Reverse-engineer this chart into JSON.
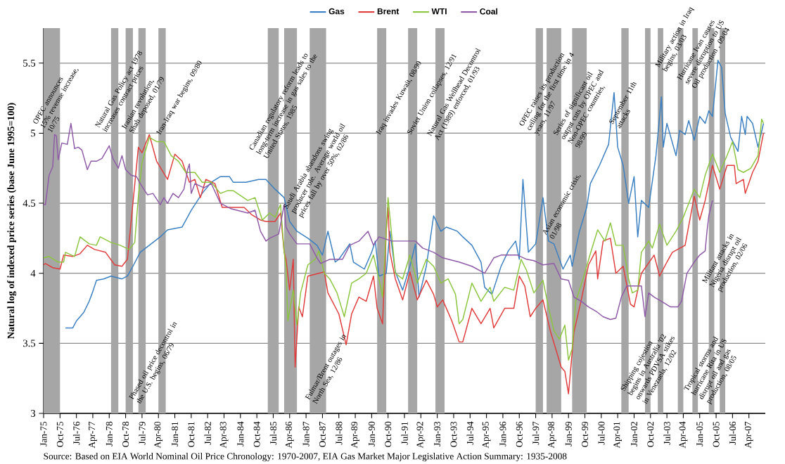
{
  "chart_data": {
    "type": "line",
    "ylabel": "Natural log of indexed price series (base June 1995=100)",
    "annotations": [
      "Source: Based on EIA World Nominal Oil Price Chronology: 1970-2007, EIA Gas Market Major Legislative Action Summary: 1935-2008"
    ],
    "xlim": [
      "1975-01",
      "2008-01"
    ],
    "ylim": [
      3,
      5.75
    ],
    "yticks": [
      3,
      3.5,
      4,
      4.5,
      5,
      5.5
    ],
    "xticks": [
      {
        "value": "1975-01",
        "label": "Jan-75"
      },
      {
        "value": "1975-10",
        "label": "Oct-75"
      },
      {
        "value": "1976-07",
        "label": "Jul-76"
      },
      {
        "value": "1977-04",
        "label": "Apr-77"
      },
      {
        "value": "1978-01",
        "label": "Jan-78"
      },
      {
        "value": "1978-10",
        "label": "Oct-78"
      },
      {
        "value": "1979-07",
        "label": "Jul-79"
      },
      {
        "value": "1980-04",
        "label": "Apr-80"
      },
      {
        "value": "1981-01",
        "label": "Jan-81"
      },
      {
        "value": "1981-10",
        "label": "Oct-81"
      },
      {
        "value": "1982-07",
        "label": "Jul-82"
      },
      {
        "value": "1983-04",
        "label": "Apr-83"
      },
      {
        "value": "1984-01",
        "label": "Jan-84"
      },
      {
        "value": "1984-10",
        "label": "Oct-84"
      },
      {
        "value": "1985-07",
        "label": "Jul-85"
      },
      {
        "value": "1986-04",
        "label": "Apr-86"
      },
      {
        "value": "1987-01",
        "label": "Jan-87"
      },
      {
        "value": "1987-10",
        "label": "Oct-87"
      },
      {
        "value": "1988-07",
        "label": "Jul-88"
      },
      {
        "value": "1989-04",
        "label": "Apr-89"
      },
      {
        "value": "1990-01",
        "label": "Jan-90"
      },
      {
        "value": "1990-10",
        "label": "Oct-90"
      },
      {
        "value": "1991-07",
        "label": "Jul-91"
      },
      {
        "value": "1992-04",
        "label": "Apr-92"
      },
      {
        "value": "1993-01",
        "label": "Jan-93"
      },
      {
        "value": "1993-10",
        "label": "Oct-93"
      },
      {
        "value": "1994-07",
        "label": "Jul-94"
      },
      {
        "value": "1995-04",
        "label": "Apr-95"
      },
      {
        "value": "1996-01",
        "label": "Jan-96"
      },
      {
        "value": "1996-10",
        "label": "Oct-96"
      },
      {
        "value": "1997-07",
        "label": "Jul-97"
      },
      {
        "value": "1998-04",
        "label": "Apr-98"
      },
      {
        "value": "1999-01",
        "label": "Jan-99"
      },
      {
        "value": "1999-10",
        "label": "Oct-99"
      },
      {
        "value": "2000-07",
        "label": "Jul-00"
      },
      {
        "value": "2001-04",
        "label": "Apr-01"
      },
      {
        "value": "2002-01",
        "label": "Jan-02"
      },
      {
        "value": "2002-10",
        "label": "Oct-02"
      },
      {
        "value": "2003-07",
        "label": "Jul-03"
      },
      {
        "value": "2004-04",
        "label": "Apr-04"
      },
      {
        "value": "2005-01",
        "label": "Jan-05"
      },
      {
        "value": "2005-10",
        "label": "Oct-05"
      },
      {
        "value": "2006-07",
        "label": "Jul-06"
      },
      {
        "value": "2007-04",
        "label": "Apr-07"
      }
    ],
    "grid": "y",
    "legend": "top",
    "bands": [
      {
        "axis": "x",
        "from": "1975-01",
        "to": "1975-10",
        "color": "#a6a6a6",
        "label": "OPEC announces 15% revenue increase, 10/75"
      },
      {
        "axis": "x",
        "from": "1978-02",
        "to": "1978-06",
        "color": "#a6a6a6",
        "label": "Natural Gas Policy act 1978 increases contract prices"
      },
      {
        "axis": "x",
        "from": "1978-10",
        "to": "1979-02",
        "color": "#a6a6a6",
        "label": "Iranian revolution, Shah deposed, 01/79"
      },
      {
        "axis": "x",
        "from": "1979-05",
        "to": "1979-09",
        "color": "#a6a6a6",
        "label": "Phased oil price decontrol in the U.S. begins, 06/79"
      },
      {
        "axis": "x",
        "from": "1980-04",
        "to": "1980-08",
        "color": "#a6a6a6",
        "label": "Iran-Iraq war begins, 09/80"
      },
      {
        "axis": "x",
        "from": "1985-04",
        "to": "1985-10",
        "color": "#a6a6a6",
        "label": "Canadian regulatory reform leads to long-term increase in gas sales to the United States, 1985"
      },
      {
        "axis": "x",
        "from": "1986-01",
        "to": "1986-08",
        "color": "#a6a6a6",
        "label": "Saudi Arabia abandons swing producer role. Average world oil prices fall by over 50%, 02/86"
      },
      {
        "axis": "x",
        "from": "1987-03",
        "to": "1987-12",
        "color": "#a6a6a6",
        "label": "Fulmar/Brent outages in North Sea, 12/86"
      },
      {
        "axis": "x",
        "from": "1990-04",
        "to": "1990-09",
        "color": "#a6a6a6",
        "label": "Iraq invades Kuwait, 08/90"
      },
      {
        "axis": "x",
        "from": "1991-09",
        "to": "1992-02",
        "color": "#a6a6a6",
        "label": "Soviet Union collapses, 12/91"
      },
      {
        "axis": "x",
        "from": "1992-12",
        "to": "1993-05",
        "color": "#a6a6a6",
        "label": "Natural Gas Wellhead Decontrol Act (1989) enforced, 01/93"
      },
      {
        "axis": "x",
        "from": "1997-07",
        "to": "1997-11",
        "color": "#a6a6a6",
        "label": "OPEC raises its production ceiling for the first time in 4 years, 11/97"
      },
      {
        "axis": "x",
        "from": "1998-01",
        "to": "1998-09",
        "color": "#a6a6a6",
        "label": "Asian economic crisis, 01/98"
      },
      {
        "axis": "x",
        "from": "1999-03",
        "to": "1999-11",
        "color": "#a6a6a6",
        "label": "Series of significant oil output cuts by OPEC and Non-OPEC countries, 98/99"
      },
      {
        "axis": "x",
        "from": "2001-06",
        "to": "2001-10",
        "color": "#a6a6a6",
        "label": "September 11th attacks"
      },
      {
        "axis": "x",
        "from": "2002-07",
        "to": "2002-10",
        "color": "#a6a6a6",
        "label": "Shipping cojestion begins in Australia '02 onwards PDVSA stikes in Venezuela, 12/02"
      },
      {
        "axis": "x",
        "from": "2003-02",
        "to": "2003-05",
        "color": "#a6a6a6",
        "label": "Military action in Iraq begins, 03/03"
      },
      {
        "axis": "x",
        "from": "2004-01",
        "to": "2004-04",
        "color": "#a6a6a6"
      },
      {
        "axis": "x",
        "from": "2004-09",
        "to": "2004-12",
        "color": "#a6a6a6",
        "label": "Hurricane Ivan causes severe disruption to US Oil production , 09/04"
      },
      {
        "axis": "x",
        "from": "2005-06",
        "to": "2005-09",
        "color": "#a6a6a6",
        "label": "Tropical storms and hurricane Rita in US disrupt oil and gas production, 08/05"
      },
      {
        "axis": "x",
        "from": "2005-12",
        "to": "2006-03",
        "color": "#a6a6a6",
        "label": "Militant attacks in Nigeria disrupt oil production, 02/06"
      }
    ],
    "series": [
      {
        "name": "Gas",
        "color": "#3a7fc1",
        "x": [
          "1976-01",
          "1976-05",
          "1976-07",
          "1976-11",
          "1977-02",
          "1977-04",
          "1977-06",
          "1977-10",
          "1978-02",
          "1978-05",
          "1978-08",
          "1978-11",
          "1979-02",
          "1979-06",
          "1979-11",
          "1980-05",
          "1980-09",
          "1981-05",
          "1981-10",
          "1982-04",
          "1982-09",
          "1983-02",
          "1983-07",
          "1983-09",
          "1984-04",
          "1984-11",
          "1985-03",
          "1985-08",
          "1986-01",
          "1986-04",
          "1986-08",
          "1987-02",
          "1987-07",
          "1987-10",
          "1988-01",
          "1988-05",
          "1988-07",
          "1989-01",
          "1989-03",
          "1989-09",
          "1990-01",
          "1990-03",
          "1990-05",
          "1990-09",
          "1990-11",
          "1991-02",
          "1991-06",
          "1991-10",
          "1992-01",
          "1992-03",
          "1992-07",
          "1992-11",
          "1993-03",
          "1993-06",
          "1993-12",
          "1994-03",
          "1994-08",
          "1995-01",
          "1995-03",
          "1995-07",
          "1995-12",
          "1996-04",
          "1996-08",
          "1996-10",
          "1996-12",
          "1997-03",
          "1997-07",
          "1997-11",
          "1998-02",
          "1998-05",
          "1998-10",
          "1999-02",
          "1999-03",
          "1999-07",
          "1999-11",
          "2000-01",
          "2000-06",
          "2000-11",
          "2001-02",
          "2001-04",
          "2001-07",
          "2001-10",
          "2002-01",
          "2002-03",
          "2002-05",
          "2002-09",
          "2003-01",
          "2003-04",
          "2003-05",
          "2003-07",
          "2003-12",
          "2004-02",
          "2004-05",
          "2004-07",
          "2004-10",
          "2005-01",
          "2005-04",
          "2005-06",
          "2005-08",
          "2005-11",
          "2006-01",
          "2006-03",
          "2006-06",
          "2006-10",
          "2006-12",
          "2007-02",
          "2007-03",
          "2007-06",
          "2007-09",
          "2007-12"
        ],
        "values": [
          3.61,
          3.61,
          3.66,
          3.72,
          3.8,
          3.87,
          3.95,
          3.96,
          3.98,
          3.97,
          3.96,
          3.98,
          4.05,
          4.15,
          4.2,
          4.26,
          4.31,
          4.33,
          4.45,
          4.57,
          4.65,
          4.69,
          4.69,
          4.65,
          4.65,
          4.67,
          4.67,
          4.6,
          4.54,
          4.37,
          4.3,
          4.25,
          4.2,
          4.13,
          4.3,
          4.08,
          4.1,
          4.21,
          4.08,
          4.03,
          4.15,
          4.23,
          3.98,
          4.0,
          4.3,
          4.01,
          3.88,
          4.05,
          4.21,
          3.83,
          4.05,
          4.41,
          4.3,
          4.33,
          4.3,
          4.26,
          4.2,
          4.08,
          3.9,
          3.85,
          4.05,
          4.16,
          4.23,
          4.1,
          4.67,
          4.15,
          4.21,
          4.54,
          4.23,
          4.21,
          4.03,
          4.13,
          4.05,
          4.3,
          4.47,
          4.64,
          4.77,
          4.92,
          5.29,
          4.9,
          4.77,
          4.5,
          4.69,
          4.26,
          4.52,
          4.47,
          4.84,
          5.26,
          4.9,
          5.07,
          4.84,
          5.02,
          4.99,
          5.09,
          4.95,
          5.12,
          5.07,
          5.16,
          5.12,
          5.52,
          5.47,
          5.14,
          4.97,
          4.87,
          5.12,
          4.99,
          5.12,
          5.07,
          4.9,
          5.07
        ]
      },
      {
        "name": "Brent",
        "color": "#e03c3c",
        "x": [
          "1975-01",
          "1975-02",
          "1975-06",
          "1975-10",
          "1975-12",
          "1976-05",
          "1976-09",
          "1977-01",
          "1977-05",
          "1977-11",
          "1978-04",
          "1978-08",
          "1978-11",
          "1979-02",
          "1979-05",
          "1979-07",
          "1979-11",
          "1980-03",
          "1980-09",
          "1981-01",
          "1981-05",
          "1981-09",
          "1981-12",
          "1982-03",
          "1982-06",
          "1982-11",
          "1983-03",
          "1983-08",
          "1984-03",
          "1984-07",
          "1984-12",
          "1985-03",
          "1985-08",
          "1985-11",
          "1986-01",
          "1986-02",
          "1986-04",
          "1986-06",
          "1986-07",
          "1986-09",
          "1986-11",
          "1987-02",
          "1987-08",
          "1987-11",
          "1988-01",
          "1988-03",
          "1988-07",
          "1988-11",
          "1989-02",
          "1989-06",
          "1989-10",
          "1990-02",
          "1990-04",
          "1990-07",
          "1990-09",
          "1990-10",
          "1990-11",
          "1991-02",
          "1991-06",
          "1991-10",
          "1992-02",
          "1992-07",
          "1992-11",
          "1993-01",
          "1993-04",
          "1993-09",
          "1994-01",
          "1994-03",
          "1994-08",
          "1995-01",
          "1995-06",
          "1995-08",
          "1996-02",
          "1996-07",
          "1996-10",
          "1997-01",
          "1997-04",
          "1997-07",
          "1997-11",
          "1998-03",
          "1998-06",
          "1998-09",
          "1998-11",
          "1999-01",
          "1999-04",
          "1999-08",
          "1999-12",
          "2000-04",
          "2000-05",
          "2000-08",
          "2000-12",
          "2001-03",
          "2001-07",
          "2001-11",
          "2002-01",
          "2002-05",
          "2002-12",
          "2003-03",
          "2003-07",
          "2003-10",
          "2004-05",
          "2004-10",
          "2005-01",
          "2005-04",
          "2005-08",
          "2005-12",
          "2006-04",
          "2006-08",
          "2006-09",
          "2007-01",
          "2007-02",
          "2007-06",
          "2007-09",
          "2007-12"
        ],
        "values": [
          4.06,
          4.07,
          4.04,
          4.03,
          4.13,
          4.12,
          4.14,
          4.2,
          4.17,
          4.15,
          4.06,
          4.05,
          4.1,
          4.5,
          4.9,
          4.86,
          4.99,
          4.8,
          4.67,
          4.85,
          4.8,
          4.65,
          4.67,
          4.54,
          4.67,
          4.64,
          4.47,
          4.47,
          4.47,
          4.42,
          4.38,
          4.37,
          4.37,
          4.43,
          4.15,
          4.1,
          3.88,
          4.1,
          3.33,
          3.76,
          3.69,
          3.98,
          4.0,
          4.01,
          3.86,
          3.81,
          3.71,
          3.49,
          3.71,
          3.83,
          3.8,
          3.98,
          3.75,
          3.64,
          4.3,
          4.47,
          4.15,
          3.96,
          3.81,
          4.01,
          3.81,
          3.95,
          3.85,
          3.76,
          3.81,
          3.66,
          3.51,
          3.51,
          3.75,
          3.64,
          3.75,
          3.61,
          3.75,
          3.75,
          3.98,
          3.91,
          3.69,
          3.75,
          3.81,
          3.59,
          3.46,
          3.33,
          3.3,
          3.14,
          3.58,
          3.81,
          4.06,
          4.16,
          3.96,
          4.23,
          4.25,
          4.0,
          4.05,
          3.78,
          3.76,
          4.0,
          4.13,
          3.98,
          4.08,
          4.15,
          4.2,
          4.55,
          4.38,
          4.52,
          4.77,
          4.6,
          4.77,
          4.77,
          4.64,
          4.67,
          4.57,
          4.72,
          4.8,
          5.0
        ]
      },
      {
        "name": "WTI",
        "color": "#8cc63f",
        "x": [
          "1975-01",
          "1975-04",
          "1975-09",
          "1975-12",
          "1976-01",
          "1976-06",
          "1976-09",
          "1977-02",
          "1977-06",
          "1977-08",
          "1978-02",
          "1978-07",
          "1978-12",
          "1979-03",
          "1979-05",
          "1979-07",
          "1979-11",
          "1980-03",
          "1980-07",
          "1980-11",
          "1981-03",
          "1981-07",
          "1981-12",
          "1982-04",
          "1982-09",
          "1983-02",
          "1983-06",
          "1983-09",
          "1984-05",
          "1984-09",
          "1985-01",
          "1985-05",
          "1985-08",
          "1985-11",
          "1986-01",
          "1986-02",
          "1986-03",
          "1986-06",
          "1986-08",
          "1986-10",
          "1987-02",
          "1987-06",
          "1987-08",
          "1987-11",
          "1988-02",
          "1988-06",
          "1988-10",
          "1989-02",
          "1989-06",
          "1989-10",
          "1990-02",
          "1990-05",
          "1990-07",
          "1990-09",
          "1990-10",
          "1991-02",
          "1991-06",
          "1991-10",
          "1992-02",
          "1992-07",
          "1992-11",
          "1993-03",
          "1993-07",
          "1993-11",
          "1994-01",
          "1994-03",
          "1994-08",
          "1995-01",
          "1995-06",
          "1995-08",
          "1996-02",
          "1996-07",
          "1996-11",
          "1997-02",
          "1997-06",
          "1997-11",
          "1998-02",
          "1998-05",
          "1998-08",
          "1998-11",
          "1999-01",
          "1999-03",
          "1999-05",
          "1999-09",
          "2000-01",
          "2000-05",
          "2000-09",
          "2000-12",
          "2001-03",
          "2001-07",
          "2001-10",
          "2001-12",
          "2002-03",
          "2002-05",
          "2002-09",
          "2002-11",
          "2003-03",
          "2003-07",
          "2003-12",
          "2004-04",
          "2004-10",
          "2005-01",
          "2005-04",
          "2005-08",
          "2005-12",
          "2006-04",
          "2006-07",
          "2006-10",
          "2007-01",
          "2007-05",
          "2007-09",
          "2007-11",
          "2007-12"
        ],
        "values": [
          4.11,
          4.12,
          4.08,
          4.08,
          4.15,
          4.12,
          4.26,
          4.21,
          4.2,
          4.26,
          4.22,
          4.2,
          4.17,
          4.22,
          4.55,
          4.79,
          4.97,
          4.94,
          4.94,
          4.84,
          4.8,
          4.72,
          4.72,
          4.65,
          4.65,
          4.57,
          4.59,
          4.59,
          4.52,
          4.54,
          4.38,
          4.43,
          4.4,
          4.49,
          4.15,
          4.05,
          3.66,
          3.88,
          3.63,
          3.86,
          4.06,
          4.1,
          4.16,
          4.0,
          3.96,
          3.86,
          3.69,
          3.93,
          3.96,
          4.0,
          4.13,
          3.96,
          3.83,
          4.3,
          4.54,
          4.0,
          3.96,
          4.13,
          3.93,
          4.1,
          4.05,
          3.93,
          3.96,
          3.85,
          3.64,
          3.67,
          3.93,
          3.8,
          3.9,
          3.8,
          3.9,
          3.88,
          4.1,
          4.02,
          3.86,
          3.95,
          3.76,
          3.59,
          3.53,
          3.63,
          3.38,
          3.46,
          3.8,
          3.96,
          4.14,
          4.31,
          4.23,
          4.36,
          4.2,
          4.2,
          3.96,
          3.86,
          3.88,
          4.15,
          4.23,
          4.18,
          4.35,
          4.2,
          4.3,
          4.4,
          4.6,
          4.54,
          4.7,
          4.85,
          4.72,
          4.84,
          4.94,
          4.74,
          4.72,
          4.75,
          4.84,
          5.1,
          5.07
        ]
      },
      {
        "name": "Coal",
        "color": "#8e5aa8",
        "x": [
          "1975-01",
          "1975-02",
          "1975-04",
          "1975-06",
          "1975-07",
          "1975-08",
          "1975-09",
          "1975-11",
          "1976-02",
          "1976-04",
          "1976-06",
          "1976-08",
          "1976-10",
          "1977-01",
          "1977-03",
          "1977-06",
          "1977-09",
          "1978-01",
          "1978-03",
          "1978-06",
          "1978-08",
          "1978-10",
          "1979-01",
          "1979-04",
          "1979-06",
          "1979-10",
          "1980-01",
          "1980-05",
          "1980-07",
          "1980-09",
          "1980-12",
          "1981-03",
          "1981-06",
          "1981-08",
          "1981-09",
          "1981-10",
          "1981-12",
          "1982-05",
          "1982-09",
          "1983-02",
          "1983-08",
          "1984-05",
          "1984-09",
          "1984-12",
          "1985-03",
          "1985-05",
          "1985-10",
          "1986-01",
          "1986-02",
          "1986-04",
          "1986-08",
          "1987-03",
          "1987-07",
          "1987-09",
          "1988-02",
          "1988-09",
          "1989-01",
          "1989-06",
          "1989-11",
          "1990-02",
          "1990-05",
          "1990-12",
          "1991-08",
          "1992-01",
          "1992-05",
          "1992-11",
          "1993-04",
          "1994-01",
          "1994-08",
          "1995-03",
          "1995-08",
          "1995-12",
          "1996-09",
          "1997-02",
          "1997-06",
          "1997-11",
          "1998-05",
          "1998-09",
          "1999-01",
          "1999-04",
          "1999-08",
          "1999-12",
          "2000-04",
          "2000-08",
          "2000-12",
          "2001-03",
          "2001-06",
          "2001-09",
          "2002-01",
          "2002-05",
          "2002-07",
          "2002-09",
          "2002-12",
          "2003-04",
          "2003-09",
          "2004-01",
          "2004-03",
          "2004-06",
          "2004-10",
          "2005-01",
          "2005-04",
          "2005-05",
          "2005-06",
          "2005-08"
        ],
        "values": [
          4.49,
          4.49,
          4.7,
          4.76,
          4.99,
          4.98,
          4.81,
          4.93,
          4.92,
          5.07,
          4.89,
          4.9,
          4.88,
          4.74,
          4.8,
          4.8,
          4.82,
          4.91,
          4.82,
          4.75,
          4.84,
          4.74,
          4.7,
          4.69,
          4.64,
          4.56,
          4.57,
          4.49,
          4.54,
          4.5,
          4.57,
          4.54,
          4.6,
          4.74,
          4.78,
          4.57,
          4.64,
          4.61,
          4.64,
          4.5,
          4.46,
          4.43,
          4.45,
          4.3,
          4.23,
          4.25,
          4.28,
          4.49,
          4.33,
          4.28,
          4.21,
          4.21,
          4.11,
          4.07,
          4.1,
          4.1,
          4.2,
          4.23,
          4.3,
          4.2,
          4.26,
          4.23,
          4.23,
          4.23,
          4.18,
          4.15,
          4.11,
          4.08,
          4.05,
          4.0,
          4.11,
          4.13,
          4.13,
          4.1,
          4.09,
          4.06,
          4.07,
          3.96,
          3.95,
          3.83,
          3.8,
          3.76,
          3.73,
          3.69,
          3.67,
          3.68,
          3.83,
          3.91,
          3.91,
          3.91,
          3.69,
          3.86,
          3.83,
          3.8,
          3.76,
          3.76,
          3.8,
          4.0,
          4.08,
          4.13,
          4.16,
          4.3,
          4.41,
          4.52
        ]
      }
    ]
  }
}
